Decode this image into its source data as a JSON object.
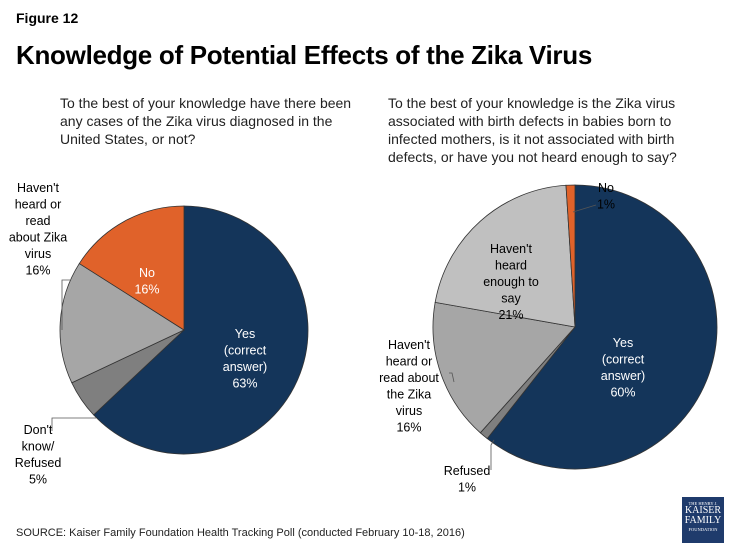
{
  "figure_label": "Figure 12",
  "title": "Knowledge of Potential Effects of the Zika Virus",
  "source": "SOURCE: Kaiser Family Foundation Health Tracking Poll (conducted February 10-18, 2016)",
  "logo": {
    "line1": "THE HENRY J.",
    "line2": "KAISER",
    "line3": "FAMILY",
    "line4": "FOUNDATION"
  },
  "chart_data": [
    {
      "type": "pie",
      "title": "To the best of your knowledge have there been any cases of the Zika virus diagnosed in the United States, or not?",
      "slices": [
        {
          "label": "Yes (correct answer)",
          "lines": [
            "Yes",
            "(correct",
            "answer)",
            "63%"
          ],
          "value": 63,
          "color": "#14355a"
        },
        {
          "label": "Don't know/ Refused",
          "lines": [
            "Don't",
            "know/",
            "Refused",
            "5%"
          ],
          "value": 5,
          "color": "#7f7f7f"
        },
        {
          "label": "Haven't heard or read about Zika virus",
          "lines": [
            "Haven't",
            "heard or",
            "read",
            "about Zika",
            "virus",
            "16%"
          ],
          "value": 16,
          "color": "#a6a6a6"
        },
        {
          "label": "No",
          "lines": [
            "No",
            "16%"
          ],
          "value": 16,
          "color": "#e0622a"
        }
      ]
    },
    {
      "type": "pie",
      "title": "To the best of your knowledge is the Zika virus associated with birth defects in babies born to infected mothers, is it not associated with birth defects, or have you not heard enough to say?",
      "slices": [
        {
          "label": "Yes (correct answer)",
          "lines": [
            "Yes",
            "(correct",
            "answer)",
            "60%"
          ],
          "value": 60,
          "color": "#14355a"
        },
        {
          "label": "Refused",
          "lines": [
            "Refused",
            "1%"
          ],
          "value": 1,
          "color": "#7f7f7f"
        },
        {
          "label": "Haven't heard or read about the Zika virus",
          "lines": [
            "Haven't",
            "heard or",
            "read about",
            "the Zika",
            "virus",
            "16%"
          ],
          "value": 16,
          "color": "#a6a6a6"
        },
        {
          "label": "Haven't heard enough to say",
          "lines": [
            "Haven't",
            "heard",
            "enough to",
            "say",
            "21%"
          ],
          "value": 21,
          "color": "#c0c0c0"
        },
        {
          "label": "No",
          "lines": [
            "No",
            "1%"
          ],
          "value": 1,
          "color": "#e0622a"
        }
      ]
    }
  ]
}
